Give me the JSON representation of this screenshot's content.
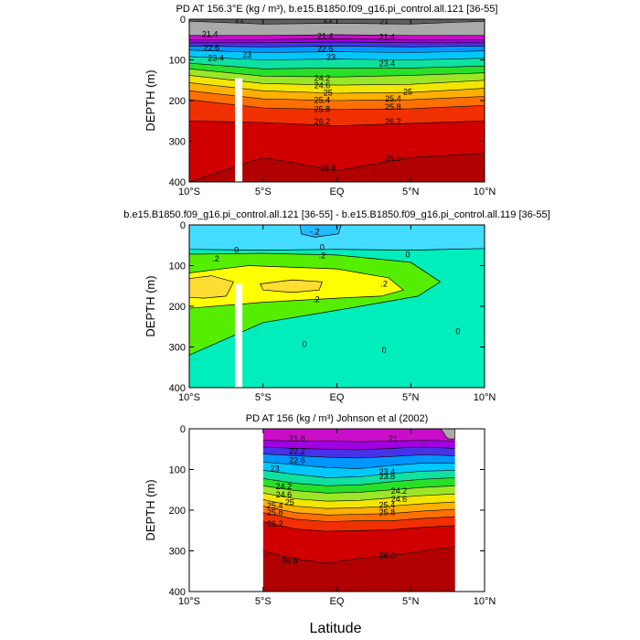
{
  "figure": {
    "xlabel": "Latitude"
  },
  "chart_data": [
    {
      "type": "contour",
      "title": "PD AT 156.3°E (kg / m³), b.e15.B1850.f09_g16.pi_control.all.121 [36-55]",
      "xlabel": "",
      "ylabel": "DEPTH (m)",
      "xlim": [
        -10,
        10
      ],
      "ylim": [
        400,
        0
      ],
      "xticks": [
        -10,
        -5,
        0,
        5,
        10
      ],
      "xticklabels": [
        "10°S",
        "5°S",
        "EQ",
        "5°N",
        "10°N"
      ],
      "yticks": [
        0,
        100,
        200,
        300,
        400
      ],
      "yticklabels": [
        "0",
        "100",
        "200",
        "300",
        "400"
      ],
      "data_xrange": [
        -10,
        10
      ],
      "surface": 21.0,
      "gradient": 0.6,
      "levels": [
        21,
        21.4,
        21.8,
        22.2,
        22.6,
        23,
        23.4,
        23.8,
        24.2,
        24.6,
        25,
        25.4,
        25.8,
        26.2,
        26.6
      ],
      "contour_lines": [
        {
          "value": 21,
          "depths": [
            5,
            12,
            10,
            12,
            5
          ]
        },
        {
          "value": 21.4,
          "depths": [
            40,
            40,
            38,
            40,
            40
          ]
        },
        {
          "value": 21.8,
          "depths": [
            50,
            50,
            48,
            50,
            50
          ]
        },
        {
          "value": 22.2,
          "depths": [
            58,
            58,
            56,
            58,
            58
          ]
        },
        {
          "value": 22.6,
          "depths": [
            66,
            68,
            66,
            68,
            66
          ]
        },
        {
          "value": 23,
          "depths": [
            76,
            82,
            80,
            82,
            78
          ]
        },
        {
          "value": 23.4,
          "depths": [
            92,
            100,
            98,
            100,
            96
          ]
        },
        {
          "value": 23.8,
          "depths": [
            108,
            122,
            120,
            120,
            115
          ]
        },
        {
          "value": 24.2,
          "depths": [
            122,
            140,
            142,
            138,
            132
          ]
        },
        {
          "value": 24.6,
          "depths": [
            138,
            158,
            162,
            160,
            150
          ]
        },
        {
          "value": 25,
          "depths": [
            156,
            176,
            182,
            180,
            170
          ]
        },
        {
          "value": 25.4,
          "depths": [
            176,
            196,
            200,
            198,
            190
          ]
        },
        {
          "value": 25.8,
          "depths": [
            198,
            218,
            222,
            220,
            212
          ]
        },
        {
          "value": 26.2,
          "depths": [
            250,
            254,
            262,
            256,
            250
          ]
        },
        {
          "value": 26.6,
          "depths": [
            400,
            340,
            372,
            340,
            330
          ]
        }
      ],
      "labels": [
        {
          "text": "21",
          "lat": -6.6,
          "depth": 8
        },
        {
          "text": "21",
          "lat": -0.6,
          "depth": 8
        },
        {
          "text": "21",
          "lat": 3.2,
          "depth": 12
        },
        {
          "text": "21.4",
          "lat": -8.6,
          "depth": 44
        },
        {
          "text": "21.4",
          "lat": -0.8,
          "depth": 48
        },
        {
          "text": "21.4",
          "lat": 3.4,
          "depth": 50
        },
        {
          "text": "22.6",
          "lat": -8.5,
          "depth": 78
        },
        {
          "text": "22.6",
          "lat": -0.8,
          "depth": 80
        },
        {
          "text": "23",
          "lat": -6.1,
          "depth": 94
        },
        {
          "text": "23",
          "lat": -0.4,
          "depth": 100
        },
        {
          "text": "23.4",
          "lat": -8.2,
          "depth": 102
        },
        {
          "text": "23.4",
          "lat": 3.4,
          "depth": 116
        },
        {
          "text": "24.2",
          "lat": -1.0,
          "depth": 152
        },
        {
          "text": "24.6",
          "lat": -1.0,
          "depth": 170
        },
        {
          "text": "25",
          "lat": -0.6,
          "depth": 188
        },
        {
          "text": "25",
          "lat": 4.8,
          "depth": 185
        },
        {
          "text": "25.4",
          "lat": -1.0,
          "depth": 206
        },
        {
          "text": "25.4",
          "lat": 3.8,
          "depth": 202
        },
        {
          "text": "25.8",
          "lat": -1.0,
          "depth": 228
        },
        {
          "text": "25.8",
          "lat": 3.8,
          "depth": 222
        },
        {
          "text": "26.2",
          "lat": -1.0,
          "depth": 258
        },
        {
          "text": "26.2",
          "lat": 3.8,
          "depth": 258
        },
        {
          "text": "26.6",
          "lat": -0.6,
          "depth": 372
        },
        {
          "text": "26.6",
          "lat": 3.8,
          "depth": 348
        }
      ],
      "gaps": [
        {
          "lat": [
            -6.9,
            -6.4
          ],
          "depth": [
            145,
            400
          ]
        }
      ],
      "masks": []
    },
    {
      "type": "contour",
      "title": "b.e15.B1850.f09_g16.pi_control.all.121 [36-55] - b.e15.B1850.f09_g16.pi_control.all.119 [36-55]",
      "xlabel": "",
      "ylabel": "DEPTH (m)",
      "xlim": [
        -10,
        10
      ],
      "ylim": [
        400,
        0
      ],
      "xticks": [
        -10,
        -5,
        0,
        5,
        10
      ],
      "xticklabels": [
        "10°S",
        "5°S",
        "EQ",
        "5°N",
        "10°N"
      ],
      "yticks": [
        0,
        100,
        200,
        300,
        400
      ],
      "yticklabels": [
        "0",
        "100",
        "200",
        "300",
        "400"
      ],
      "bands": [
        {
          "range": [
            0,
            0.2
          ],
          "color": "#00eebb"
        },
        {
          "range": [
            -0.2,
            0
          ],
          "color": "#44ddff"
        },
        {
          "range": [
            -0.4,
            -0.2
          ],
          "color": "#22bbff"
        },
        {
          "range": [
            0.2,
            0.4
          ],
          "color": "#55ee00"
        },
        {
          "range": [
            0.4,
            0.6
          ],
          "color": "#ffff00"
        },
        {
          "range": [
            0.6,
            0.8
          ],
          "color": "#ffdd33"
        }
      ],
      "regions": [
        {
          "range": [
            -0.2,
            0
          ],
          "points": [
            [
              -10,
              0
            ],
            [
              10,
              0
            ],
            [
              10,
              58
            ],
            [
              5,
              62
            ],
            [
              0,
              60
            ],
            [
              -5,
              62
            ],
            [
              -10,
              60
            ]
          ]
        },
        {
          "range": [
            -0.4,
            -0.2
          ],
          "points": [
            [
              -2.5,
              0
            ],
            [
              0.3,
              0
            ],
            [
              0.1,
              22
            ],
            [
              -1.5,
              30
            ],
            [
              -2.4,
              22
            ]
          ]
        },
        {
          "range": [
            0.2,
            0.4
          ],
          "points": [
            [
              -10,
              72
            ],
            [
              -5,
              70
            ],
            [
              0,
              74
            ],
            [
              5,
              92
            ],
            [
              7,
              140
            ],
            [
              5.5,
              175
            ],
            [
              0,
              210
            ],
            [
              -5,
              240
            ],
            [
              -10,
              320
            ]
          ]
        },
        {
          "range": [
            0.4,
            0.6
          ],
          "points": [
            [
              -10,
              118
            ],
            [
              -6,
              100
            ],
            [
              0,
              108
            ],
            [
              3.5,
              130
            ],
            [
              4.5,
              160
            ],
            [
              3,
              175
            ],
            [
              0,
              180
            ],
            [
              -5,
              190
            ],
            [
              -10,
              205
            ]
          ]
        },
        {
          "range": [
            0.6,
            0.8
          ],
          "points": [
            [
              -10,
              132
            ],
            [
              -8.5,
              125
            ],
            [
              -7,
              140
            ],
            [
              -7.5,
              175
            ],
            [
              -9,
              180
            ],
            [
              -10,
              178
            ]
          ]
        },
        {
          "range": [
            0.6,
            0.8
          ],
          "points": [
            [
              -5.2,
              145
            ],
            [
              -3,
              135
            ],
            [
              -1,
              140
            ],
            [
              -1.2,
              160
            ],
            [
              -3,
              166
            ],
            [
              -5,
              160
            ]
          ]
        }
      ],
      "labels": [
        {
          "text": "-.2",
          "lat": -1.5,
          "depth": 24
        },
        {
          "text": "0",
          "lat": -6.8,
          "depth": 68
        },
        {
          "text": "0",
          "lat": -1.0,
          "depth": 62
        },
        {
          "text": "0",
          "lat": 4.8,
          "depth": 80
        },
        {
          "text": ".2",
          "lat": -8.2,
          "depth": 90
        },
        {
          "text": ".2",
          "lat": -1.0,
          "depth": 82
        },
        {
          "text": ".2",
          "lat": 3.2,
          "depth": 152
        },
        {
          "text": ".2",
          "lat": -1.4,
          "depth": 190
        },
        {
          "text": "0",
          "lat": 8.2,
          "depth": 268
        },
        {
          "text": "0",
          "lat": 3.2,
          "depth": 315
        },
        {
          "text": "0",
          "lat": -2.2,
          "depth": 300
        }
      ],
      "gaps": [
        {
          "lat": [
            -6.9,
            -6.4
          ],
          "depth": [
            145,
            400
          ]
        }
      ]
    },
    {
      "type": "contour",
      "title": "PD AT 156 (kg / m³) Johnson et al (2002)",
      "xlabel": "",
      "ylabel": "DEPTH (m)",
      "xlim": [
        -10,
        10
      ],
      "ylim": [
        400,
        0
      ],
      "xticks": [
        -10,
        -5,
        0,
        5,
        10
      ],
      "xticklabels": [
        "10°S",
        "5°S",
        "EQ",
        "5°N",
        "10°N"
      ],
      "yticks": [
        0,
        100,
        200,
        300,
        400
      ],
      "yticklabels": [
        "0",
        "100",
        "200",
        "300",
        "400"
      ],
      "data_xrange": [
        -5,
        8
      ],
      "surface": 21.4,
      "gradient": 0.4,
      "levels": [
        21.4,
        21.8,
        22.2,
        22.6,
        23,
        23.4,
        23.8,
        24.2,
        24.6,
        25,
        25.4,
        25.8,
        26.2,
        26.6
      ],
      "contour_lines": [
        {
          "value": 21.4,
          "depths": [
            0,
            0,
            0,
            0,
            0,
            0,
            0
          ]
        },
        {
          "value": 21.8,
          "depths": [
            28,
            30,
            30,
            32,
            30,
            28,
            30
          ]
        },
        {
          "value": 22.2,
          "depths": [
            45,
            48,
            50,
            52,
            48,
            45,
            48
          ]
        },
        {
          "value": 22.6,
          "depths": [
            62,
            66,
            70,
            72,
            68,
            64,
            66
          ]
        },
        {
          "value": 23,
          "depths": [
            82,
            88,
            95,
            98,
            90,
            84,
            84
          ]
        },
        {
          "value": 23.4,
          "depths": [
            102,
            112,
            120,
            118,
            110,
            104,
            102
          ]
        },
        {
          "value": 23.8,
          "depths": [
            122,
            134,
            140,
            138,
            130,
            124,
            120
          ]
        },
        {
          "value": 24.2,
          "depths": [
            140,
            152,
            158,
            156,
            150,
            144,
            140
          ]
        },
        {
          "value": 24.6,
          "depths": [
            158,
            172,
            178,
            176,
            170,
            164,
            160
          ]
        },
        {
          "value": 25,
          "depths": [
            174,
            190,
            196,
            194,
            190,
            184,
            180
          ]
        },
        {
          "value": 25.4,
          "depths": [
            190,
            206,
            212,
            210,
            208,
            202,
            198
          ]
        },
        {
          "value": 25.8,
          "depths": [
            206,
            222,
            228,
            226,
            226,
            220,
            216
          ]
        },
        {
          "value": 26.2,
          "depths": [
            228,
            246,
            252,
            250,
            248,
            242,
            238
          ]
        },
        {
          "value": 26.6,
          "depths": [
            300,
            320,
            330,
            318,
            312,
            300,
            290
          ]
        }
      ],
      "labels": [
        {
          "text": "21.8",
          "lat": -2.7,
          "depth": 30
        },
        {
          "text": "21",
          "lat": 3.8,
          "depth": 32
        },
        {
          "text": "22.2",
          "lat": -2.7,
          "depth": 62
        },
        {
          "text": "22.6",
          "lat": -2.7,
          "depth": 84
        },
        {
          "text": "23",
          "lat": -4.2,
          "depth": 104
        },
        {
          "text": "23.4",
          "lat": 3.4,
          "depth": 112
        },
        {
          "text": "23.8",
          "lat": 3.4,
          "depth": 124
        },
        {
          "text": "24.2",
          "lat": -3.6,
          "depth": 148
        },
        {
          "text": "24.2",
          "lat": 4.2,
          "depth": 160
        },
        {
          "text": "24.6",
          "lat": -3.6,
          "depth": 168
        },
        {
          "text": "24.6",
          "lat": 4.2,
          "depth": 180
        },
        {
          "text": "25",
          "lat": -3.2,
          "depth": 188
        },
        {
          "text": "25.4",
          "lat": -4.2,
          "depth": 196
        },
        {
          "text": "25.4",
          "lat": 3.4,
          "depth": 194
        },
        {
          "text": "25.8",
          "lat": -4.2,
          "depth": 212
        },
        {
          "text": "25.8",
          "lat": 3.4,
          "depth": 212
        },
        {
          "text": "26.2",
          "lat": -4.2,
          "depth": 240
        },
        {
          "text": "26.6",
          "lat": -3.2,
          "depth": 330
        },
        {
          "text": "26.6",
          "lat": 3.4,
          "depth": 318
        }
      ],
      "gaps": [],
      "masks": [
        {
          "points": [
            [
              7.0,
              0
            ],
            [
              8.0,
              0
            ],
            [
              8.0,
              25
            ],
            [
              7.6,
              25
            ],
            [
              7.4,
              20
            ],
            [
              7.2,
              8
            ]
          ]
        }
      ]
    }
  ]
}
